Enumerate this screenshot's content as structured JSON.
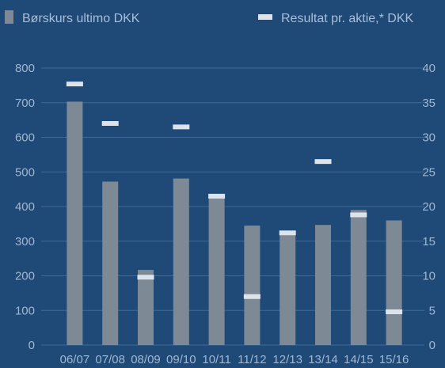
{
  "chart_data": {
    "type": "bar",
    "categories": [
      "06/07",
      "07/08",
      "08/09",
      "09/10",
      "10/11",
      "11/12",
      "12/13",
      "13/14",
      "14/15",
      "15/16"
    ],
    "series": [
      {
        "name": "Børskurs ultimo DKK",
        "type": "bar",
        "axis": "left",
        "values": [
          703,
          472,
          217,
          481,
          427,
          345,
          325,
          347,
          390,
          360
        ]
      },
      {
        "name": "Resultat pr. aktie,* DKK",
        "type": "marker",
        "axis": "right",
        "values": [
          37.7,
          32.0,
          9.8,
          31.5,
          21.5,
          7.0,
          16.2,
          26.5,
          18.8,
          4.8
        ]
      }
    ],
    "yleft": {
      "min": 0,
      "max": 800,
      "ticks": [
        "0",
        "100",
        "200",
        "300",
        "400",
        "500",
        "600",
        "700",
        "800"
      ]
    },
    "yright": {
      "min": 0,
      "max": 40,
      "ticks": [
        "0",
        "5",
        "10",
        "15",
        "20",
        "25",
        "30",
        "35",
        "40"
      ]
    },
    "grid": true,
    "legend_position": "top",
    "colors": {
      "background": "#1f4a78",
      "bar": "#7d8a96",
      "marker": "#dde3ea",
      "grid": "#3f6a96",
      "text": "#9fb7d0"
    }
  }
}
